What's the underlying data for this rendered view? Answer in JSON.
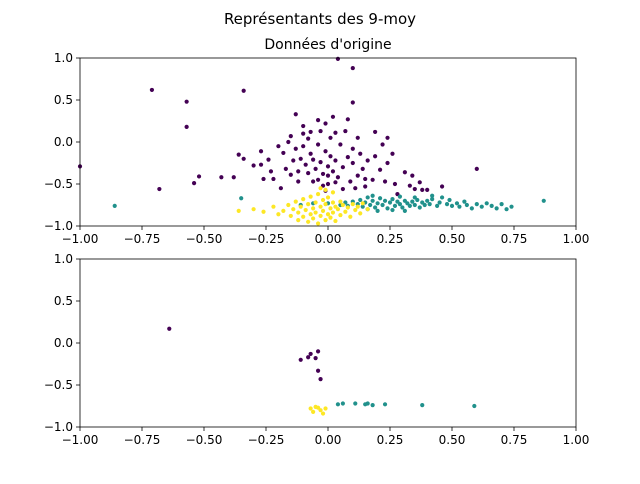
{
  "figure": {
    "suptitle": "Représentants des 9-moy"
  },
  "colors": {
    "c0": "#440154",
    "c1": "#21918c",
    "c2": "#fde725",
    "axis": "#000000"
  },
  "chart_data": [
    {
      "type": "scatter",
      "title": "Données d'origine",
      "xlim": [
        -1.0,
        1.0
      ],
      "ylim": [
        -1.0,
        1.0
      ],
      "xticks": [
        "−1.00",
        "−0.75",
        "−0.50",
        "−0.25",
        "0.00",
        "0.25",
        "0.50",
        "0.75",
        "1.00"
      ],
      "xtick_values": [
        -1.0,
        -0.75,
        -0.5,
        -0.25,
        0.0,
        0.25,
        0.5,
        0.75,
        1.0
      ],
      "yticks": [
        "−1.0",
        "−0.5",
        "0.0",
        "0.5",
        "1.0"
      ],
      "ytick_values": [
        -1.0,
        -0.5,
        0.0,
        0.5,
        1.0
      ],
      "series": [
        {
          "cluster": 0,
          "points": [
            [
              -1.0,
              -0.29
            ],
            [
              -0.71,
              0.62
            ],
            [
              -0.68,
              -0.56
            ],
            [
              -0.57,
              0.48
            ],
            [
              -0.57,
              0.18
            ],
            [
              -0.54,
              -0.49
            ],
            [
              -0.52,
              -0.41
            ],
            [
              -0.43,
              -0.42
            ],
            [
              -0.38,
              -0.42
            ],
            [
              -0.34,
              0.61
            ],
            [
              -0.36,
              -0.15
            ],
            [
              -0.34,
              -0.2
            ],
            [
              -0.3,
              -0.28
            ],
            [
              -0.27,
              -0.27
            ],
            [
              -0.27,
              -0.11
            ],
            [
              -0.24,
              -0.21
            ],
            [
              -0.23,
              -0.35
            ],
            [
              -0.26,
              -0.44
            ],
            [
              -0.22,
              -0.44
            ],
            [
              -0.19,
              -0.55
            ],
            [
              -0.18,
              -0.13
            ],
            [
              -0.17,
              -0.32
            ],
            [
              -0.15,
              0.07
            ],
            [
              -0.15,
              -0.39
            ],
            [
              -0.14,
              -0.22
            ],
            [
              -0.13,
              -0.08
            ],
            [
              -0.13,
              0.33
            ],
            [
              -0.12,
              -0.47
            ],
            [
              -0.11,
              -0.2
            ],
            [
              -0.1,
              0.19
            ],
            [
              -0.1,
              -0.05
            ],
            [
              -0.09,
              -0.27
            ],
            [
              -0.08,
              -0.37
            ],
            [
              -0.08,
              0.04
            ],
            [
              -0.07,
              0.12
            ],
            [
              -0.07,
              -0.14
            ],
            [
              -0.06,
              -0.21
            ],
            [
              -0.05,
              -0.32
            ],
            [
              -0.04,
              -0.45
            ],
            [
              -0.04,
              -0.03
            ],
            [
              -0.03,
              0.13
            ],
            [
              -0.03,
              -0.24
            ],
            [
              -0.02,
              -0.38
            ],
            [
              -0.01,
              0.22
            ],
            [
              -0.01,
              -0.11
            ],
            [
              0.0,
              -0.29
            ],
            [
              0.0,
              -0.5
            ],
            [
              0.01,
              0.05
            ],
            [
              0.01,
              -0.17
            ],
            [
              0.02,
              -0.35
            ],
            [
              0.03,
              0.11
            ],
            [
              0.03,
              -0.22
            ],
            [
              0.04,
              -0.42
            ],
            [
              0.05,
              -0.03
            ],
            [
              0.06,
              -0.3
            ],
            [
              0.07,
              0.13
            ],
            [
              0.08,
              -0.18
            ],
            [
              0.09,
              -0.47
            ],
            [
              0.1,
              -0.08
            ],
            [
              0.1,
              -0.25
            ],
            [
              0.12,
              -0.4
            ],
            [
              0.13,
              -0.14
            ],
            [
              0.14,
              -0.32
            ],
            [
              0.15,
              -0.53
            ],
            [
              0.16,
              -0.22
            ],
            [
              0.18,
              -0.45
            ],
            [
              0.19,
              -0.17
            ],
            [
              0.21,
              -0.33
            ],
            [
              0.23,
              -0.47
            ],
            [
              0.24,
              -0.25
            ],
            [
              0.27,
              -0.5
            ],
            [
              0.28,
              -0.62
            ],
            [
              0.31,
              -0.36
            ],
            [
              0.35,
              -0.56
            ],
            [
              0.38,
              -0.57
            ],
            [
              0.04,
              0.99
            ],
            [
              0.1,
              0.88
            ],
            [
              0.1,
              0.47
            ],
            [
              0.19,
              0.12
            ],
            [
              0.24,
              0.05
            ],
            [
              0.34,
              -0.4
            ],
            [
              0.33,
              -0.52
            ],
            [
              0.37,
              -0.48
            ],
            [
              0.4,
              -0.57
            ],
            [
              0.46,
              -0.53
            ],
            [
              0.6,
              -0.32
            ],
            [
              0.0,
              -0.4
            ],
            [
              -0.02,
              -0.52
            ],
            [
              0.03,
              -0.48
            ],
            [
              0.06,
              -0.56
            ],
            [
              -0.01,
              -0.58
            ],
            [
              0.11,
              -0.55
            ],
            [
              -0.06,
              -0.47
            ],
            [
              0.15,
              -0.44
            ],
            [
              -0.12,
              -0.35
            ],
            [
              0.02,
              0.3
            ],
            [
              -0.04,
              0.26
            ],
            [
              0.08,
              0.27
            ],
            [
              -0.1,
              0.1
            ],
            [
              0.12,
              0.05
            ],
            [
              0.22,
              -0.03
            ],
            [
              -0.2,
              -0.05
            ],
            [
              -0.16,
              0.0
            ],
            [
              0.26,
              -0.14
            ]
          ]
        },
        {
          "cluster": 1,
          "points": [
            [
              -0.86,
              -0.76
            ],
            [
              -0.35,
              -0.67
            ],
            [
              -0.11,
              -0.75
            ],
            [
              -0.06,
              -0.73
            ],
            [
              0.0,
              -0.73
            ],
            [
              0.05,
              -0.75
            ],
            [
              0.07,
              -0.72
            ],
            [
              0.08,
              -0.76
            ],
            [
              0.1,
              -0.71
            ],
            [
              0.12,
              -0.74
            ],
            [
              0.13,
              -0.69
            ],
            [
              0.14,
              -0.77
            ],
            [
              0.15,
              -0.72
            ],
            [
              0.16,
              -0.66
            ],
            [
              0.17,
              -0.75
            ],
            [
              0.18,
              -0.7
            ],
            [
              0.19,
              -0.78
            ],
            [
              0.2,
              -0.73
            ],
            [
              0.21,
              -0.67
            ],
            [
              0.22,
              -0.75
            ],
            [
              0.23,
              -0.7
            ],
            [
              0.24,
              -0.79
            ],
            [
              0.25,
              -0.72
            ],
            [
              0.26,
              -0.68
            ],
            [
              0.27,
              -0.76
            ],
            [
              0.28,
              -0.71
            ],
            [
              0.29,
              -0.74
            ],
            [
              0.3,
              -0.78
            ],
            [
              0.31,
              -0.7
            ],
            [
              0.32,
              -0.73
            ],
            [
              0.33,
              -0.76
            ],
            [
              0.34,
              -0.71
            ],
            [
              0.35,
              -0.75
            ],
            [
              0.36,
              -0.69
            ],
            [
              0.37,
              -0.78
            ],
            [
              0.38,
              -0.72
            ],
            [
              0.39,
              -0.75
            ],
            [
              0.4,
              -0.7
            ],
            [
              0.41,
              -0.74
            ],
            [
              0.42,
              -0.68
            ],
            [
              0.44,
              -0.76
            ],
            [
              0.45,
              -0.72
            ],
            [
              0.46,
              -0.66
            ],
            [
              0.48,
              -0.74
            ],
            [
              0.49,
              -0.69
            ],
            [
              0.5,
              -0.76
            ],
            [
              0.52,
              -0.73
            ],
            [
              0.53,
              -0.77
            ],
            [
              0.55,
              -0.71
            ],
            [
              0.56,
              -0.75
            ],
            [
              0.58,
              -0.79
            ],
            [
              0.6,
              -0.74
            ],
            [
              0.62,
              -0.77
            ],
            [
              0.64,
              -0.73
            ],
            [
              0.66,
              -0.76
            ],
            [
              0.68,
              -0.79
            ],
            [
              0.7,
              -0.74
            ],
            [
              0.72,
              -0.8
            ],
            [
              0.74,
              -0.77
            ],
            [
              0.87,
              -0.7
            ],
            [
              0.16,
              -0.8
            ],
            [
              0.2,
              -0.82
            ],
            [
              0.26,
              -0.81
            ],
            [
              0.31,
              -0.82
            ],
            [
              0.18,
              -0.64
            ],
            [
              0.29,
              -0.65
            ],
            [
              0.35,
              -0.66
            ],
            [
              0.42,
              -0.64
            ]
          ]
        },
        {
          "cluster": 2,
          "points": [
            [
              -0.36,
              -0.82
            ],
            [
              -0.3,
              -0.8
            ],
            [
              -0.26,
              -0.83
            ],
            [
              -0.22,
              -0.77
            ],
            [
              -0.2,
              -0.86
            ],
            [
              -0.18,
              -0.82
            ],
            [
              -0.16,
              -0.75
            ],
            [
              -0.15,
              -0.88
            ],
            [
              -0.14,
              -0.8
            ],
            [
              -0.13,
              -0.71
            ],
            [
              -0.12,
              -0.93
            ],
            [
              -0.12,
              -0.84
            ],
            [
              -0.11,
              -0.77
            ],
            [
              -0.1,
              -0.68
            ],
            [
              -0.1,
              -0.89
            ],
            [
              -0.09,
              -0.81
            ],
            [
              -0.08,
              -0.74
            ],
            [
              -0.08,
              -0.95
            ],
            [
              -0.07,
              -0.86
            ],
            [
              -0.07,
              -0.65
            ],
            [
              -0.06,
              -0.79
            ],
            [
              -0.06,
              -0.91
            ],
            [
              -0.05,
              -0.72
            ],
            [
              -0.05,
              -0.84
            ],
            [
              -0.04,
              -0.62
            ],
            [
              -0.04,
              -0.97
            ],
            [
              -0.03,
              -0.77
            ],
            [
              -0.03,
              -0.88
            ],
            [
              -0.02,
              -0.69
            ],
            [
              -0.02,
              -0.82
            ],
            [
              -0.01,
              -0.74
            ],
            [
              -0.01,
              -0.93
            ],
            [
              0.0,
              -0.86
            ],
            [
              0.0,
              -0.66
            ],
            [
              0.01,
              -0.79
            ],
            [
              0.01,
              -0.9
            ],
            [
              0.02,
              -0.72
            ],
            [
              0.02,
              -0.84
            ],
            [
              0.03,
              -0.77
            ],
            [
              0.03,
              -0.94
            ],
            [
              0.04,
              -0.8
            ],
            [
              0.05,
              -0.71
            ],
            [
              0.05,
              -0.87
            ],
            [
              0.06,
              -0.75
            ],
            [
              0.07,
              -0.83
            ],
            [
              0.08,
              -0.78
            ],
            [
              0.09,
              -0.89
            ],
            [
              0.1,
              -0.74
            ],
            [
              0.11,
              -0.81
            ],
            [
              0.12,
              -0.77
            ],
            [
              0.13,
              -0.85
            ],
            [
              0.14,
              -0.73
            ],
            [
              0.16,
              -0.8
            ],
            [
              -0.01,
              -0.57
            ],
            [
              -0.03,
              -0.55
            ],
            [
              0.02,
              -0.6
            ]
          ]
        }
      ]
    },
    {
      "type": "scatter",
      "title": "",
      "xlim": [
        -1.0,
        1.0
      ],
      "ylim": [
        -1.0,
        1.0
      ],
      "xticks": [
        "−1.00",
        "−0.75",
        "−0.50",
        "−0.25",
        "0.00",
        "0.25",
        "0.50",
        "0.75",
        "1.00"
      ],
      "xtick_values": [
        -1.0,
        -0.75,
        -0.5,
        -0.25,
        0.0,
        0.25,
        0.5,
        0.75,
        1.0
      ],
      "yticks": [
        "−1.0",
        "−0.5",
        "0.0",
        "0.5",
        "1.0"
      ],
      "ytick_values": [
        -1.0,
        -0.5,
        0.0,
        0.5,
        1.0
      ],
      "series": [
        {
          "cluster": 0,
          "points": [
            [
              -0.64,
              0.17
            ],
            [
              -0.11,
              -0.2
            ],
            [
              -0.08,
              -0.17
            ],
            [
              -0.07,
              -0.13
            ],
            [
              -0.05,
              -0.18
            ],
            [
              -0.04,
              -0.1
            ],
            [
              -0.04,
              -0.33
            ],
            [
              -0.03,
              -0.43
            ]
          ]
        },
        {
          "cluster": 1,
          "points": [
            [
              0.04,
              -0.73
            ],
            [
              0.06,
              -0.72
            ],
            [
              0.11,
              -0.72
            ],
            [
              0.15,
              -0.73
            ],
            [
              0.16,
              -0.72
            ],
            [
              0.18,
              -0.74
            ],
            [
              0.23,
              -0.73
            ],
            [
              0.38,
              -0.74
            ],
            [
              0.59,
              -0.75
            ]
          ]
        },
        {
          "cluster": 2,
          "points": [
            [
              -0.07,
              -0.78
            ],
            [
              -0.05,
              -0.76
            ],
            [
              -0.06,
              -0.82
            ],
            [
              -0.04,
              -0.77
            ],
            [
              -0.03,
              -0.8
            ],
            [
              -0.02,
              -0.84
            ],
            [
              -0.01,
              -0.78
            ]
          ]
        }
      ]
    }
  ]
}
